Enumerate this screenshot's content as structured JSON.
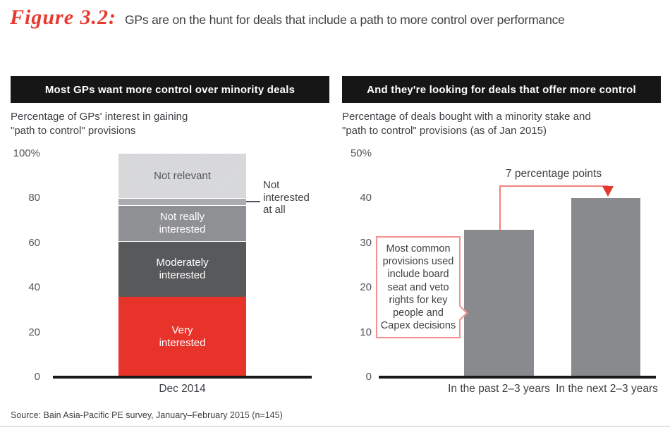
{
  "figure": {
    "label": "Figure 3.2:",
    "title": "GPs are on the hunt for deals that include a path to more control over performance"
  },
  "left_panel": {
    "header": "Most GPs want more control over minority deals",
    "subtitle_line1": "Percentage of GPs' interest in gaining",
    "subtitle_line2": "\"path to control\" provisions"
  },
  "right_panel": {
    "header": "And they're looking for deals that offer more control",
    "subtitle_line1": "Percentage of deals bought with a minority stake and",
    "subtitle_line2": "\"path to control\" provisions (as of Jan 2015)"
  },
  "source": "Source: Bain Asia-Pacific PE survey, January–February 2015 (n=145)",
  "colors": {
    "accent_red": "#e8332a",
    "salmon": "#f5918e",
    "axis_black": "#19191a",
    "header_black": "#161617"
  },
  "chart_data": [
    {
      "type": "bar",
      "subtype": "stacked",
      "title": "Most GPs want more control over minority deals",
      "description": "Percentage of GPs' interest in gaining \"path to control\" provisions",
      "categories": [
        "Dec 2014"
      ],
      "series": [
        {
          "name": "Very interested",
          "values": [
            36
          ],
          "color": "#e8332a",
          "label_placement": "inside"
        },
        {
          "name": "Moderately interested",
          "values": [
            25
          ],
          "color": "#58595b",
          "label_placement": "inside"
        },
        {
          "name": "Not really interested",
          "values": [
            16
          ],
          "color": "#8e9093",
          "label_placement": "inside"
        },
        {
          "name": "Not interested at all",
          "values": [
            3
          ],
          "color": "#aaacaf",
          "label_placement": "outside-right"
        },
        {
          "name": "Not relevant",
          "values": [
            20
          ],
          "color": "#d3d4d6",
          "label_placement": "inside"
        }
      ],
      "ylim": [
        0,
        100
      ],
      "yticks": [
        {
          "label": "100%",
          "value": 100
        },
        {
          "label": "80",
          "value": 80
        },
        {
          "label": "60",
          "value": 60
        },
        {
          "label": "40",
          "value": 40
        },
        {
          "label": "20",
          "value": 20
        },
        {
          "label": "0",
          "value": 0
        }
      ],
      "grid": false,
      "legend": "none"
    },
    {
      "type": "bar",
      "title": "And they're looking for deals that offer more control",
      "description": "Percentage of deals bought with a minority stake and \"path to control\" provisions (as of Jan 2015)",
      "categories": [
        "In the past 2–3 years",
        "In the next 2–3 years"
      ],
      "values": [
        33,
        40
      ],
      "bar_color": "#898a8d",
      "ylim": [
        0,
        50
      ],
      "yticks": [
        {
          "label": "50%",
          "value": 50
        },
        {
          "label": "40",
          "value": 40
        },
        {
          "label": "30",
          "value": 30
        },
        {
          "label": "20",
          "value": 20
        },
        {
          "label": "10",
          "value": 10
        },
        {
          "label": "0",
          "value": 0
        }
      ],
      "annotation": "7 percentage points",
      "callout": "Most common provisions used include board seat and veto rights for key people and Capex decisions",
      "grid": false,
      "legend": "none"
    }
  ]
}
